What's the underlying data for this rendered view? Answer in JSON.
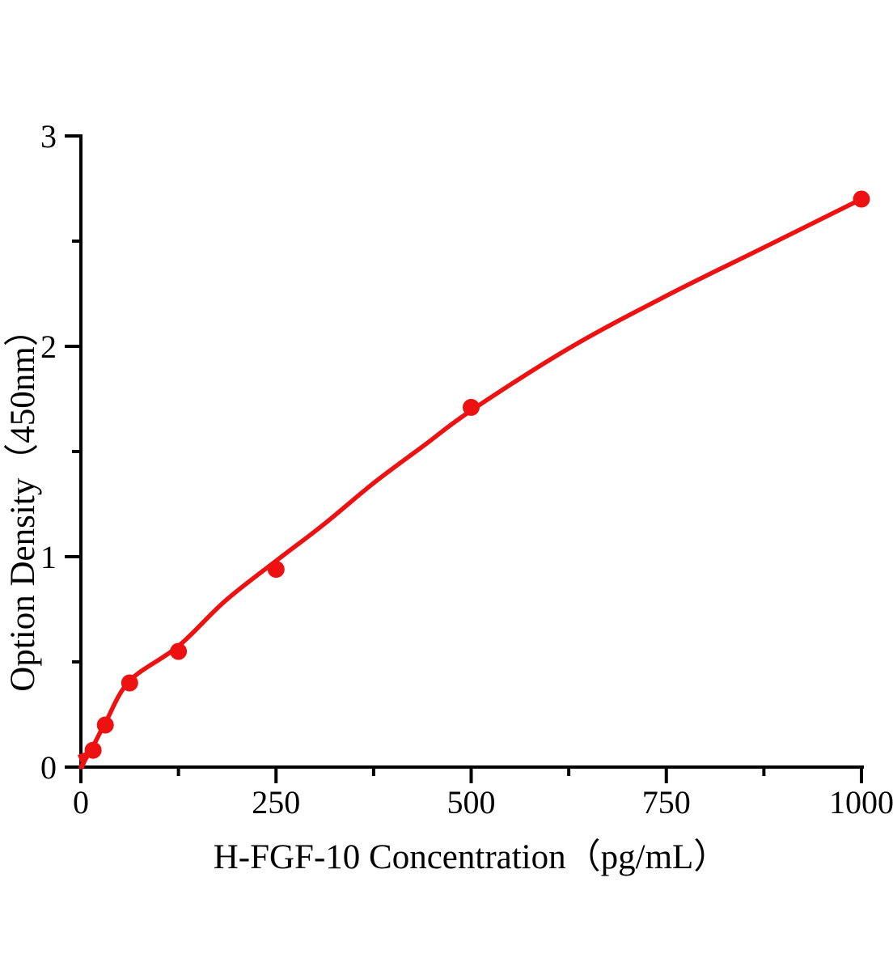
{
  "chart_data": {
    "type": "scatter",
    "title": "",
    "xlabel": "H-FGF-10 Concentration（pg/mL）",
    "ylabel": "Option Density（450nm）",
    "xlim": [
      0,
      1000
    ],
    "ylim": [
      0,
      3
    ],
    "grid": false,
    "legend": "none",
    "x_ticks": {
      "major": [
        0,
        250,
        500,
        750,
        1000
      ],
      "labels": [
        "0",
        "250",
        "500",
        "750",
        "1000"
      ],
      "minor": [
        125,
        375,
        625,
        875
      ]
    },
    "y_ticks": {
      "major": [
        0,
        1,
        2,
        3
      ],
      "labels": [
        "0",
        "1",
        "2",
        "3"
      ],
      "minor": [
        0.5,
        1.5,
        2.5
      ]
    },
    "series": [
      {
        "marker": "circle",
        "color": "#ee1111",
        "points": [
          {
            "x": 15.6,
            "y": 0.08
          },
          {
            "x": 31.25,
            "y": 0.2
          },
          {
            "x": 62.5,
            "y": 0.4
          },
          {
            "x": 125,
            "y": 0.55
          },
          {
            "x": 250,
            "y": 0.94
          },
          {
            "x": 500,
            "y": 1.71
          },
          {
            "x": 1000,
            "y": 2.7
          }
        ],
        "fit_curve": [
          [
            0,
            0
          ],
          [
            15.6,
            0.1
          ],
          [
            31.25,
            0.21
          ],
          [
            62.5,
            0.41
          ],
          [
            125,
            0.575
          ],
          [
            185,
            0.79
          ],
          [
            250,
            0.98
          ],
          [
            310,
            1.15
          ],
          [
            375,
            1.35
          ],
          [
            440,
            1.53
          ],
          [
            500,
            1.695
          ],
          [
            625,
            1.99
          ],
          [
            750,
            2.24
          ],
          [
            875,
            2.47
          ],
          [
            1000,
            2.7
          ]
        ]
      }
    ],
    "colors": {
      "accent": "#ee1111",
      "axis": "#000000",
      "background": "#ffffff"
    }
  }
}
